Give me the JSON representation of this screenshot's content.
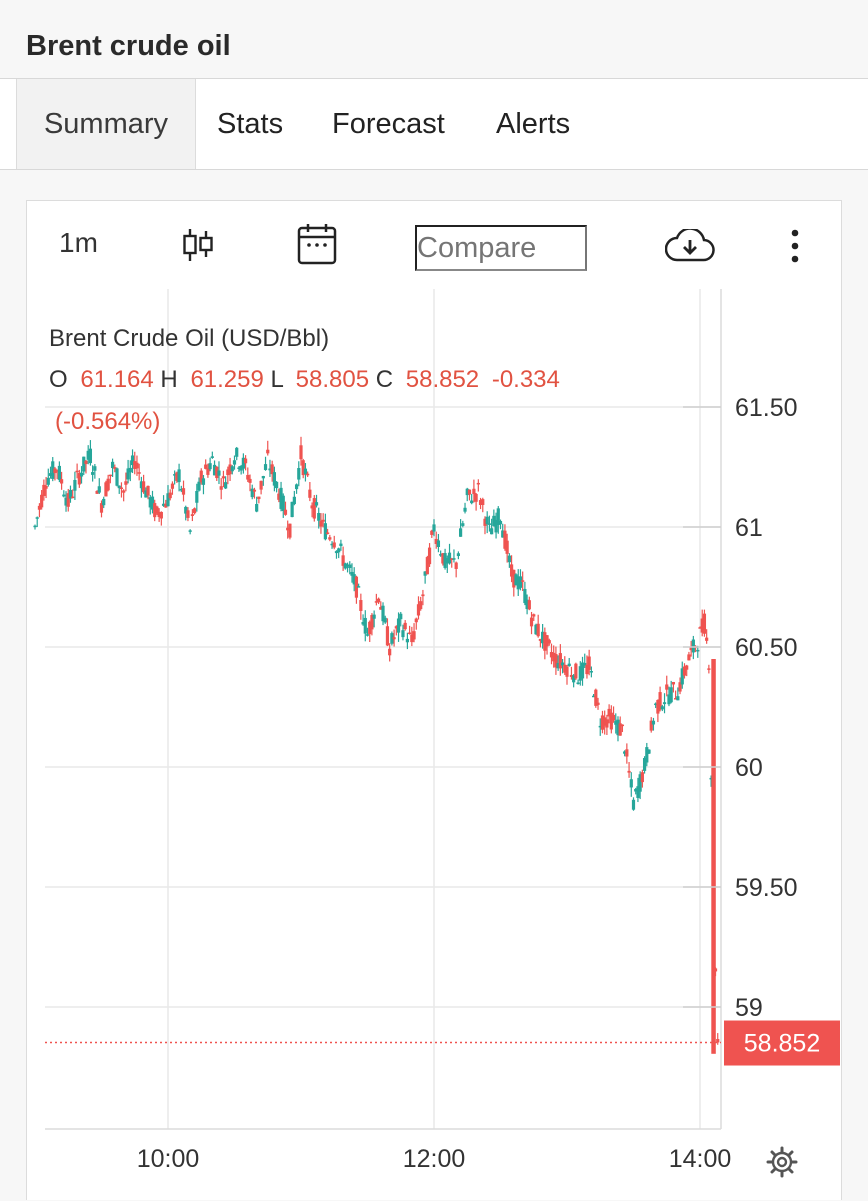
{
  "header": {
    "title": "Brent crude oil"
  },
  "tabs": [
    {
      "label": "Summary",
      "active": true
    },
    {
      "label": "Stats",
      "active": false
    },
    {
      "label": "Forecast",
      "active": false
    },
    {
      "label": "Alerts",
      "active": false
    }
  ],
  "toolbar": {
    "interval_label": "1m",
    "chart_type_icon": "candlestick-icon",
    "date_icon": "calendar-icon",
    "compare_placeholder": "Compare",
    "download_icon": "cloud-download-icon",
    "more_icon": "more-vertical-icon"
  },
  "colors": {
    "up": "#26a69a",
    "down": "#ef5350",
    "grid": "#e9e9e9"
  },
  "settings_icon": "gear-icon",
  "chart_data": {
    "type": "candlestick",
    "title": "Brent Crude Oil (USD/Bbl)",
    "ohlc": {
      "o_label": "O",
      "o": "61.164",
      "h_label": "H",
      "h": "61.259",
      "l_label": "L",
      "l": "58.805",
      "c_label": "C",
      "c": "58.852",
      "change": "-0.334",
      "change_pct": "(-0.564%)"
    },
    "last_price": 58.852,
    "last_price_label": "58.852",
    "y_ticks": [
      {
        "value": 61.5,
        "label": "61.50"
      },
      {
        "value": 61,
        "label": "61"
      },
      {
        "value": 60.5,
        "label": "60.50"
      },
      {
        "value": 60,
        "label": "60"
      },
      {
        "value": 59.5,
        "label": "59.50"
      },
      {
        "value": 59,
        "label": "59"
      }
    ],
    "x_ticks": [
      "10:00",
      "12:00",
      "14:00"
    ],
    "grid": true,
    "path": [
      [
        "09:00",
        61.0
      ],
      [
        "09:05",
        61.2
      ],
      [
        "09:10",
        61.25
      ],
      [
        "09:15",
        61.1
      ],
      [
        "09:20",
        61.22
      ],
      [
        "09:25",
        61.3
      ],
      [
        "09:30",
        61.1
      ],
      [
        "09:35",
        61.25
      ],
      [
        "09:40",
        61.15
      ],
      [
        "09:45",
        61.28
      ],
      [
        "09:50",
        61.15
      ],
      [
        "09:55",
        61.05
      ],
      [
        "10:00",
        61.12
      ],
      [
        "10:05",
        61.22
      ],
      [
        "10:10",
        60.98
      ],
      [
        "10:15",
        61.2
      ],
      [
        "10:20",
        61.28
      ],
      [
        "10:25",
        61.18
      ],
      [
        "10:30",
        61.3
      ],
      [
        "10:35",
        61.25
      ],
      [
        "10:40",
        61.1
      ],
      [
        "10:45",
        61.28
      ],
      [
        "10:50",
        61.15
      ],
      [
        "10:55",
        61.0
      ],
      [
        "11:00",
        61.3
      ],
      [
        "11:05",
        61.1
      ],
      [
        "11:10",
        61.0
      ],
      [
        "11:15",
        60.95
      ],
      [
        "11:20",
        60.85
      ],
      [
        "11:25",
        60.75
      ],
      [
        "11:30",
        60.55
      ],
      [
        "11:35",
        60.72
      ],
      [
        "11:40",
        60.5
      ],
      [
        "11:45",
        60.6
      ],
      [
        "11:50",
        60.52
      ],
      [
        "11:55",
        60.72
      ],
      [
        "12:00",
        61.0
      ],
      [
        "12:05",
        60.85
      ],
      [
        "12:10",
        60.85
      ],
      [
        "12:15",
        61.12
      ],
      [
        "12:20",
        61.15
      ],
      [
        "12:25",
        60.98
      ],
      [
        "12:30",
        61.05
      ],
      [
        "12:35",
        60.8
      ],
      [
        "12:40",
        60.75
      ],
      [
        "12:45",
        60.6
      ],
      [
        "12:50",
        60.52
      ],
      [
        "12:55",
        60.45
      ],
      [
        "13:00",
        60.42
      ],
      [
        "13:05",
        60.38
      ],
      [
        "13:10",
        60.42
      ],
      [
        "13:15",
        60.2
      ],
      [
        "13:20",
        60.2
      ],
      [
        "13:25",
        60.15
      ],
      [
        "13:30",
        59.85
      ],
      [
        "13:35",
        60.0
      ],
      [
        "13:40",
        60.25
      ],
      [
        "13:45",
        60.3
      ],
      [
        "13:50",
        60.32
      ],
      [
        "13:55",
        60.45
      ],
      [
        "14:00",
        60.55
      ],
      [
        "14:02",
        60.6
      ],
      [
        "14:04",
        60.45
      ],
      [
        "14:06",
        59.5
      ],
      [
        "14:08",
        58.852
      ]
    ]
  }
}
